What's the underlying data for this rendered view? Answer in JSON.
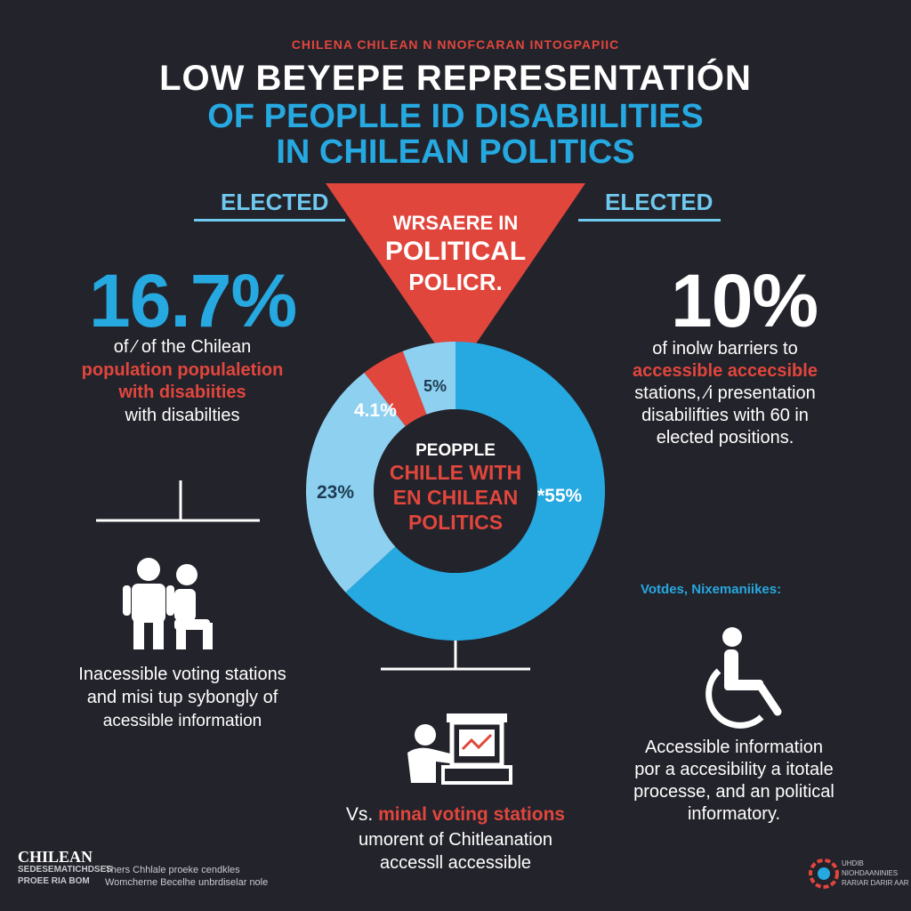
{
  "header": {
    "kicker": "CHILENA CHILEAN N NNOFCARAN INTOGPAPIIC",
    "title_line1": "LOW BEYEPE REPRESENTATIÓN",
    "title_line2": "OF PEOPLLE ID DISABIILITIES",
    "title_line3": "IN CHILEAN POLITICS"
  },
  "elected_left": "ELECTED",
  "elected_right": "ELECTED",
  "triangle": {
    "line1": "WRSAERE IN",
    "line2": "POLITICAL",
    "line3": "POLICR."
  },
  "left_stat": {
    "value": "16.7%",
    "line1": "of ⁄ of the Chilean",
    "line2": "population populaletion",
    "line3": "with disabiities",
    "line4": "with disabilties"
  },
  "right_stat": {
    "value": "10%",
    "line1": "of inolw barriers to",
    "line2": "accessible accecsible",
    "line3": "stations, ⁄i presentation",
    "line4": "disabilifties with 60 in",
    "line5": "elected positions."
  },
  "chart_data": {
    "type": "pie",
    "variant": "donut",
    "labels": [
      "5%",
      "4.1%",
      "23%",
      "*55%"
    ],
    "values": [
      5,
      4.1,
      23,
      55
    ],
    "colors": [
      "#8ed0f0",
      "#e1463c",
      "#8ed0f0",
      "#26a8e0"
    ],
    "center_line1": "PEOPPLE",
    "center_line2": "CHILLE WITH",
    "center_line3": "EN CHILEAN",
    "center_line4": "POLITICS"
  },
  "left_issue": {
    "icon": "people-icon",
    "line1": "Inacessible voting stations",
    "line2": "and misi tup sybongly of",
    "line3": "acessible information"
  },
  "right_issue": {
    "label": "Votdes, Nixemaniikes:",
    "icon": "wheelchair-icon",
    "line1": "Accessible information",
    "line2": "por a accesibility a itotale",
    "line3": "processe, and an political",
    "line4": "informatory."
  },
  "bottom_issue": {
    "icon": "voting-booth-icon",
    "prefix": "Vs.",
    "highlight": "minal voting stations",
    "line2": "umorent of Chitleanation",
    "line3": "accessll accessible"
  },
  "footer": {
    "logo_text": "CHILEAN",
    "logo_sub1": "SEDESEMATICHDSES",
    "logo_sub2": "PROEE RIA BOM",
    "note1": "Thers Chhlale proeke cendkles",
    "note2": "Womcherne Becelhe unbrdiselar nole",
    "right1": "UHDIB",
    "right2": "NIOHDAANINIES",
    "right3": "RARIAR DARIR AAR"
  }
}
